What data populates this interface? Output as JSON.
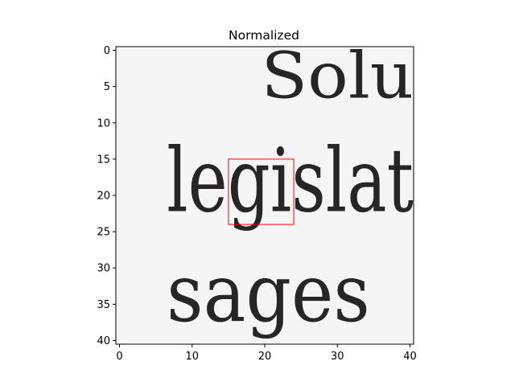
{
  "chart_data": {
    "type": "heatmap",
    "title": "Normalized",
    "xlabel": "",
    "ylabel": "",
    "colormap": "grayscale (white = high, black = low)",
    "image_size": [
      41,
      41
    ],
    "xlim": [
      -0.5,
      40.5
    ],
    "ylim": [
      40.5,
      -0.5
    ],
    "x_ticks": [
      0,
      10,
      20,
      30,
      40
    ],
    "y_ticks": [
      0,
      5,
      10,
      15,
      20,
      25,
      30,
      35,
      40
    ],
    "background_value": 0.96,
    "glyph_strokes": [
      {
        "text": "Solu",
        "row_range": [
          0,
          7
        ],
        "col_range": [
          20,
          40
        ],
        "value": 0.15
      },
      {
        "text": "legislat",
        "row_range": [
          13,
          23
        ],
        "col_range": [
          7,
          40
        ],
        "value": 0.15
      },
      {
        "text": "sages",
        "row_range": [
          29,
          38
        ],
        "col_range": [
          7,
          34
        ],
        "value": 0.15
      }
    ],
    "annotations": [
      {
        "type": "rectangle",
        "color": "#ff0000",
        "x": 15,
        "y": 15,
        "width": 9,
        "height": 9
      }
    ]
  }
}
